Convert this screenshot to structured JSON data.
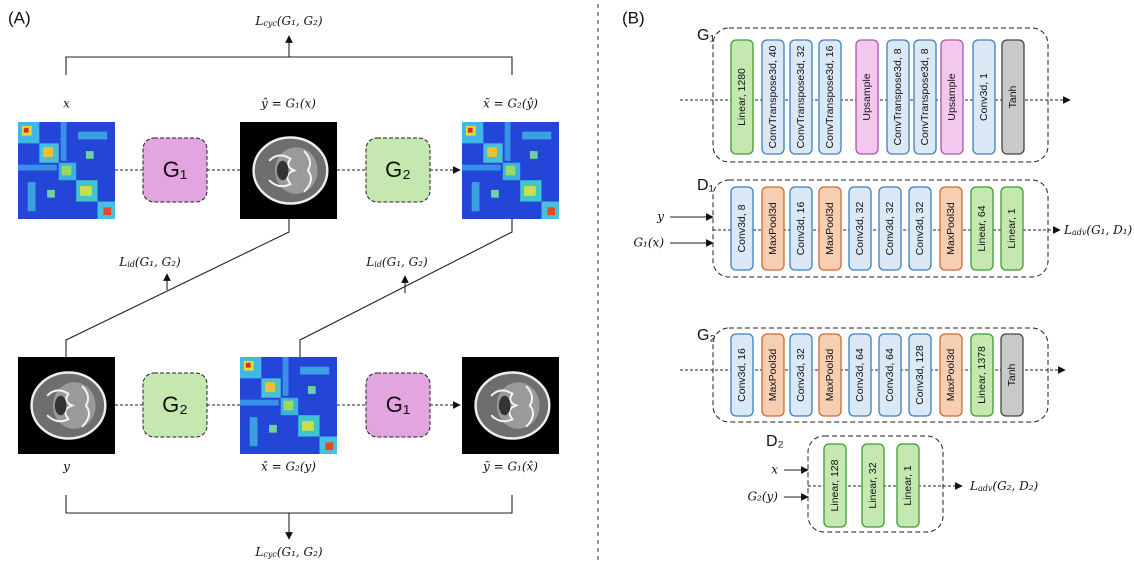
{
  "panel_a": {
    "label": "(A)",
    "cycle_loss_top": {
      "symbol": "L",
      "sub": "cyc",
      "args": "(G₁, G₂)"
    },
    "identity_losses": [
      {
        "symbol": "L",
        "sub": "id",
        "args": "(G₁, G₂)"
      },
      {
        "symbol": "L",
        "sub": "id",
        "args": "(G₁, G₂)"
      }
    ],
    "cycle_loss_bottom": {
      "symbol": "L",
      "sub": "cyc",
      "args": "(G₁, G₂)"
    },
    "top_row": {
      "input": "x",
      "middle": "ŷ = G₁(x)",
      "output": "x̃ = G₂(ŷ)",
      "first_generator": {
        "text": "G₁",
        "color": "#e3a5df"
      },
      "second_generator": {
        "text": "G₂",
        "color": "#c5e8b0"
      }
    },
    "bottom_row": {
      "input": "y",
      "middle": "x̂ = G₂(y)",
      "output": "ỹ = G₁(x̂)",
      "first_generator": {
        "text": "G₂",
        "color": "#c5e8b0"
      },
      "second_generator": {
        "text": "G₁",
        "color": "#e3a5df"
      }
    }
  },
  "panel_b": {
    "label": "(B)",
    "networks": [
      {
        "name": "G₁",
        "inputs": [],
        "output": null,
        "layers": [
          {
            "text": "Linear, 1280",
            "color": "#c5e8b0"
          },
          {
            "text": "ConvTranspose3d, 40",
            "color": "#dbe8f6"
          },
          {
            "text": "ConvTranspose3d, 32",
            "color": "#dbe8f6"
          },
          {
            "text": "ConvTranspose3d, 16",
            "color": "#dbe8f6"
          },
          {
            "text": "Upsample",
            "color": "#f3c8ef"
          },
          {
            "text": "ConvTranspose3d, 8",
            "color": "#dbe8f6"
          },
          {
            "text": "ConvTranspose3d, 8",
            "color": "#dbe8f6"
          },
          {
            "text": "Upsample",
            "color": "#f3c8ef"
          },
          {
            "text": "Conv3d, 1",
            "color": "#dbe8f6"
          },
          {
            "text": "Tanh",
            "color": "#c9c9c9"
          }
        ]
      },
      {
        "name": "D₁",
        "inputs": [
          "y",
          "G₁(x)"
        ],
        "output": {
          "symbol": "L",
          "sub": "adv",
          "args": "(G₁, D₁)"
        },
        "layers": [
          {
            "text": "Conv3d, 8",
            "color": "#dbe8f6"
          },
          {
            "text": "MaxPool3d",
            "color": "#f6cfb3"
          },
          {
            "text": "Conv3d, 16",
            "color": "#dbe8f6"
          },
          {
            "text": "MaxPool3d",
            "color": "#f6cfb3"
          },
          {
            "text": "Conv3d, 32",
            "color": "#dbe8f6"
          },
          {
            "text": "Conv3d, 32",
            "color": "#dbe8f6"
          },
          {
            "text": "Conv3d, 32",
            "color": "#dbe8f6"
          },
          {
            "text": "MaxPool3d",
            "color": "#f6cfb3"
          },
          {
            "text": "Linear, 64",
            "color": "#c5e8b0"
          },
          {
            "text": "Linear, 1",
            "color": "#c5e8b0"
          }
        ]
      },
      {
        "name": "G₂",
        "inputs": [],
        "output": null,
        "layers": [
          {
            "text": "Conv3d, 16",
            "color": "#dbe8f6"
          },
          {
            "text": "MaxPool3d",
            "color": "#f6cfb3"
          },
          {
            "text": "Conv3d, 32",
            "color": "#dbe8f6"
          },
          {
            "text": "MaxPool3d",
            "color": "#f6cfb3"
          },
          {
            "text": "Conv3d, 64",
            "color": "#dbe8f6"
          },
          {
            "text": "Conv3d, 64",
            "color": "#dbe8f6"
          },
          {
            "text": "Conv3d, 128",
            "color": "#dbe8f6"
          },
          {
            "text": "MaxPool3d",
            "color": "#f6cfb3"
          },
          {
            "text": "Linear, 1378",
            "color": "#c5e8b0"
          },
          {
            "text": "Tanh",
            "color": "#c9c9c9"
          }
        ]
      },
      {
        "name": "D₂",
        "inputs": [
          "x",
          "G₂(y)"
        ],
        "output": {
          "symbol": "L",
          "sub": "adv",
          "args": "(G₂, D₂)"
        },
        "layers": [
          {
            "text": "Linear, 128",
            "color": "#c5e8b0"
          },
          {
            "text": "Linear, 32",
            "color": "#c5e8b0"
          },
          {
            "text": "Linear, 1",
            "color": "#c5e8b0"
          }
        ]
      }
    ]
  }
}
